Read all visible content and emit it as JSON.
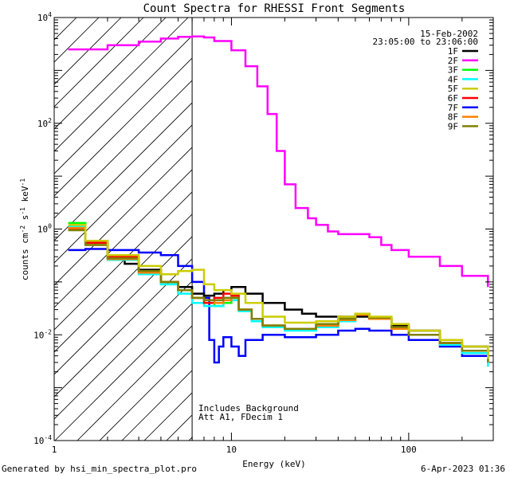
{
  "chart_data": {
    "type": "line",
    "title": "Count Spectra for RHESSI Front Segments",
    "xlabel": "Energy (keV)",
    "ylabel": "counts cm^-2 s^-1 keV^-1",
    "xscale": "log",
    "yscale": "log",
    "xlim": [
      1,
      300
    ],
    "ylim": [
      0.0001,
      10000
    ],
    "x_ticks": [
      {
        "value": 1,
        "label": "1"
      },
      {
        "value": 10,
        "label": "10"
      },
      {
        "value": 100,
        "label": "100"
      }
    ],
    "y_ticks": [
      {
        "value": 0.0001,
        "mant": "10",
        "exp": "-4"
      },
      {
        "value": 0.01,
        "mant": "10",
        "exp": "-2"
      },
      {
        "value": 1,
        "mant": "10",
        "exp": "0"
      },
      {
        "value": 100,
        "mant": "10",
        "exp": "2"
      },
      {
        "value": 10000,
        "mant": "10",
        "exp": "4"
      }
    ],
    "date": "15-Feb-2002",
    "time_range": "23:05:00 to 23:06:00",
    "annotations": [
      "Includes Background",
      "Att A1, FDecim 1"
    ],
    "excluded_region": {
      "from": 1,
      "to": 6,
      "style": "hatched"
    },
    "legend_position": "top-right",
    "series": [
      {
        "name": "1F",
        "color": "#000000",
        "points": [
          [
            1.2,
            1.0
          ],
          [
            1.5,
            0.55
          ],
          [
            2.0,
            0.3
          ],
          [
            2.5,
            0.22
          ],
          [
            3.0,
            0.17
          ],
          [
            4.0,
            0.1
          ],
          [
            5.0,
            0.08
          ],
          [
            6.0,
            0.06
          ],
          [
            7.0,
            0.055
          ],
          [
            8.0,
            0.06
          ],
          [
            9.0,
            0.07
          ],
          [
            10.0,
            0.08
          ],
          [
            12.0,
            0.06
          ],
          [
            15.0,
            0.04
          ],
          [
            20.0,
            0.03
          ],
          [
            25.0,
            0.025
          ],
          [
            30.0,
            0.022
          ],
          [
            40.0,
            0.022
          ],
          [
            50.0,
            0.022
          ],
          [
            60.0,
            0.02
          ],
          [
            80.0,
            0.015
          ],
          [
            100.0,
            0.012
          ],
          [
            150.0,
            0.008
          ],
          [
            200.0,
            0.006
          ],
          [
            280.0,
            0.004
          ]
        ]
      },
      {
        "name": "2F",
        "color": "#ff00ff",
        "points": [
          [
            1.2,
            2500
          ],
          [
            2.0,
            3000
          ],
          [
            3.0,
            3500
          ],
          [
            4.0,
            4000
          ],
          [
            5.0,
            4300
          ],
          [
            6.0,
            4400
          ],
          [
            7.0,
            4200
          ],
          [
            8.0,
            3600
          ],
          [
            10.0,
            2400
          ],
          [
            12.0,
            1200
          ],
          [
            14.0,
            500
          ],
          [
            16.0,
            150
          ],
          [
            18.0,
            30
          ],
          [
            20.0,
            7
          ],
          [
            23.0,
            2.5
          ],
          [
            27.0,
            1.6
          ],
          [
            30.0,
            1.2
          ],
          [
            35.0,
            0.9
          ],
          [
            40.0,
            0.8
          ],
          [
            50.0,
            0.8
          ],
          [
            60.0,
            0.7
          ],
          [
            70.0,
            0.5
          ],
          [
            80.0,
            0.4
          ],
          [
            100.0,
            0.3
          ],
          [
            150.0,
            0.2
          ],
          [
            200.0,
            0.13
          ],
          [
            280.0,
            0.08
          ]
        ]
      },
      {
        "name": "3F",
        "color": "#00ff00",
        "points": [
          [
            1.2,
            1.3
          ],
          [
            1.5,
            0.6
          ],
          [
            2.0,
            0.28
          ],
          [
            3.0,
            0.15
          ],
          [
            4.0,
            0.09
          ],
          [
            5.0,
            0.07
          ],
          [
            6.0,
            0.05
          ],
          [
            7.0,
            0.04
          ],
          [
            8.0,
            0.035
          ],
          [
            9.0,
            0.04
          ],
          [
            10.0,
            0.05
          ],
          [
            11.0,
            0.03
          ],
          [
            13.0,
            0.02
          ],
          [
            15.0,
            0.015
          ],
          [
            20.0,
            0.013
          ],
          [
            30.0,
            0.015
          ],
          [
            40.0,
            0.02
          ],
          [
            50.0,
            0.025
          ],
          [
            60.0,
            0.02
          ],
          [
            80.0,
            0.013
          ],
          [
            100.0,
            0.01
          ],
          [
            150.0,
            0.007
          ],
          [
            200.0,
            0.005
          ],
          [
            280.0,
            0.003
          ]
        ]
      },
      {
        "name": "4F",
        "color": "#00ffff",
        "points": [
          [
            1.2,
            1.1
          ],
          [
            1.5,
            0.5
          ],
          [
            2.0,
            0.26
          ],
          [
            3.0,
            0.14
          ],
          [
            4.0,
            0.09
          ],
          [
            5.0,
            0.06
          ],
          [
            6.0,
            0.04
          ],
          [
            7.0,
            0.035
          ],
          [
            8.0,
            0.035
          ],
          [
            9.0,
            0.05
          ],
          [
            10.0,
            0.045
          ],
          [
            11.0,
            0.028
          ],
          [
            13.0,
            0.018
          ],
          [
            15.0,
            0.014
          ],
          [
            20.0,
            0.012
          ],
          [
            30.0,
            0.014
          ],
          [
            40.0,
            0.018
          ],
          [
            50.0,
            0.024
          ],
          [
            60.0,
            0.02
          ],
          [
            80.0,
            0.013
          ],
          [
            100.0,
            0.01
          ],
          [
            150.0,
            0.0065
          ],
          [
            200.0,
            0.0045
          ],
          [
            280.0,
            0.0025
          ]
        ]
      },
      {
        "name": "5F",
        "color": "#cccc00",
        "points": [
          [
            1.2,
            1.2
          ],
          [
            1.5,
            0.6
          ],
          [
            2.0,
            0.32
          ],
          [
            3.0,
            0.2
          ],
          [
            4.0,
            0.14
          ],
          [
            5.0,
            0.16
          ],
          [
            6.0,
            0.17
          ],
          [
            7.0,
            0.09
          ],
          [
            8.0,
            0.07
          ],
          [
            10.0,
            0.06
          ],
          [
            12.0,
            0.04
          ],
          [
            15.0,
            0.022
          ],
          [
            20.0,
            0.017
          ],
          [
            30.0,
            0.018
          ],
          [
            40.0,
            0.022
          ],
          [
            50.0,
            0.025
          ],
          [
            60.0,
            0.022
          ],
          [
            80.0,
            0.016
          ],
          [
            100.0,
            0.012
          ],
          [
            150.0,
            0.008
          ],
          [
            200.0,
            0.006
          ],
          [
            280.0,
            0.0035
          ]
        ]
      },
      {
        "name": "6F",
        "color": "#ff0000",
        "points": [
          [
            1.2,
            1.0
          ],
          [
            1.5,
            0.55
          ],
          [
            2.0,
            0.3
          ],
          [
            3.0,
            0.16
          ],
          [
            4.0,
            0.1
          ],
          [
            5.0,
            0.07
          ],
          [
            6.0,
            0.05
          ],
          [
            7.0,
            0.04
          ],
          [
            8.0,
            0.05
          ],
          [
            9.0,
            0.06
          ],
          [
            10.0,
            0.055
          ],
          [
            11.0,
            0.03
          ],
          [
            13.0,
            0.02
          ],
          [
            15.0,
            0.015
          ],
          [
            20.0,
            0.013
          ],
          [
            30.0,
            0.015
          ],
          [
            40.0,
            0.019
          ],
          [
            50.0,
            0.024
          ],
          [
            60.0,
            0.02
          ],
          [
            80.0,
            0.014
          ],
          [
            100.0,
            0.01
          ],
          [
            150.0,
            0.007
          ],
          [
            200.0,
            0.005
          ],
          [
            280.0,
            0.003
          ]
        ]
      },
      {
        "name": "7F",
        "color": "#0000ff",
        "points": [
          [
            1.2,
            0.4
          ],
          [
            1.5,
            0.42
          ],
          [
            2.0,
            0.4
          ],
          [
            3.0,
            0.36
          ],
          [
            4.0,
            0.32
          ],
          [
            5.0,
            0.2
          ],
          [
            6.0,
            0.1
          ],
          [
            7.0,
            0.05
          ],
          [
            7.5,
            0.008
          ],
          [
            8.0,
            0.003
          ],
          [
            8.5,
            0.006
          ],
          [
            9.0,
            0.009
          ],
          [
            10.0,
            0.006
          ],
          [
            11.0,
            0.004
          ],
          [
            12.0,
            0.008
          ],
          [
            15.0,
            0.01
          ],
          [
            20.0,
            0.009
          ],
          [
            30.0,
            0.01
          ],
          [
            40.0,
            0.012
          ],
          [
            50.0,
            0.013
          ],
          [
            60.0,
            0.012
          ],
          [
            80.0,
            0.01
          ],
          [
            100.0,
            0.008
          ],
          [
            150.0,
            0.006
          ],
          [
            200.0,
            0.004
          ],
          [
            280.0,
            0.003
          ]
        ]
      },
      {
        "name": "8F",
        "color": "#ff8000",
        "points": [
          [
            1.2,
            1.05
          ],
          [
            1.5,
            0.5
          ],
          [
            2.0,
            0.27
          ],
          [
            3.0,
            0.15
          ],
          [
            4.0,
            0.1
          ],
          [
            5.0,
            0.07
          ],
          [
            6.0,
            0.05
          ],
          [
            7.0,
            0.045
          ],
          [
            8.0,
            0.04
          ],
          [
            9.0,
            0.045
          ],
          [
            10.0,
            0.05
          ],
          [
            11.0,
            0.03
          ],
          [
            13.0,
            0.02
          ],
          [
            15.0,
            0.015
          ],
          [
            20.0,
            0.013
          ],
          [
            30.0,
            0.015
          ],
          [
            40.0,
            0.019
          ],
          [
            50.0,
            0.024
          ],
          [
            60.0,
            0.02
          ],
          [
            80.0,
            0.013
          ],
          [
            100.0,
            0.01
          ],
          [
            150.0,
            0.007
          ],
          [
            200.0,
            0.005
          ],
          [
            280.0,
            0.003
          ]
        ]
      },
      {
        "name": "9F",
        "color": "#808000",
        "points": [
          [
            1.2,
            0.95
          ],
          [
            1.5,
            0.5
          ],
          [
            2.0,
            0.28
          ],
          [
            3.0,
            0.16
          ],
          [
            4.0,
            0.1
          ],
          [
            5.0,
            0.07
          ],
          [
            6.0,
            0.05
          ],
          [
            7.0,
            0.045
          ],
          [
            8.0,
            0.045
          ],
          [
            9.0,
            0.05
          ],
          [
            10.0,
            0.05
          ],
          [
            11.0,
            0.03
          ],
          [
            13.0,
            0.02
          ],
          [
            15.0,
            0.015
          ],
          [
            20.0,
            0.013
          ],
          [
            30.0,
            0.016
          ],
          [
            40.0,
            0.02
          ],
          [
            50.0,
            0.025
          ],
          [
            60.0,
            0.021
          ],
          [
            80.0,
            0.014
          ],
          [
            100.0,
            0.01
          ],
          [
            150.0,
            0.007
          ],
          [
            200.0,
            0.005
          ],
          [
            280.0,
            0.003
          ]
        ]
      }
    ]
  },
  "footer": {
    "generator": "Generated by hsi_min_spectra_plot.pro",
    "timestamp": "6-Apr-2023 01:36"
  }
}
